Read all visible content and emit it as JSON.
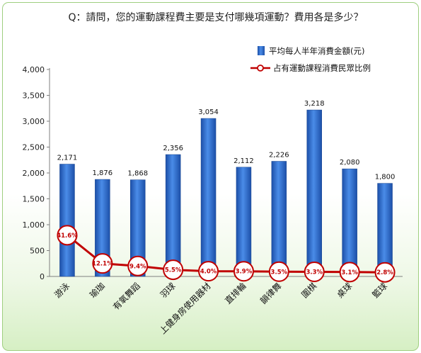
{
  "chart_data": {
    "type": "bar",
    "title": "Q：請問，您的運動課程費主要是支付哪幾項運動？費用各是多少？",
    "categories": [
      "游泳",
      "瑜珈",
      "有氧舞蹈",
      "羽球",
      "上健身房使用器材",
      "直排輪",
      "韻律舞",
      "圍棋",
      "桌球",
      "籃球"
    ],
    "series": [
      {
        "name": "平均每人半年消費金額(元)",
        "kind": "bar",
        "values": [
          2171,
          1876,
          1868,
          2356,
          3054,
          2112,
          2226,
          3218,
          2080,
          1800
        ],
        "labels": [
          "2,171",
          "1,876",
          "1,868",
          "2,356",
          "3,054",
          "2,112",
          "2,226",
          "3,218",
          "2,080",
          "1,800"
        ]
      },
      {
        "name": "占有運動課程消費民眾比例",
        "kind": "line",
        "values": [
          41.6,
          12.1,
          9.4,
          5.5,
          4.0,
          3.9,
          3.5,
          3.3,
          3.1,
          2.8
        ],
        "labels": [
          "41.6%",
          "12.1%",
          "9.4%",
          "5.5%",
          "4.0%",
          "3.9%",
          "3.5%",
          "3.3%",
          "3.1%",
          "2.8%"
        ]
      }
    ],
    "yticks": [
      "0",
      "500",
      "1,000",
      "1,500",
      "2,000",
      "2,500",
      "3,000",
      "3,500",
      "4,000"
    ],
    "ylim": [
      0,
      4000
    ],
    "legend": "top-right",
    "grid": false,
    "colors": {
      "bar": "#2f6fd0",
      "line": "#c00000",
      "marker_fill": "#ffffff"
    }
  }
}
